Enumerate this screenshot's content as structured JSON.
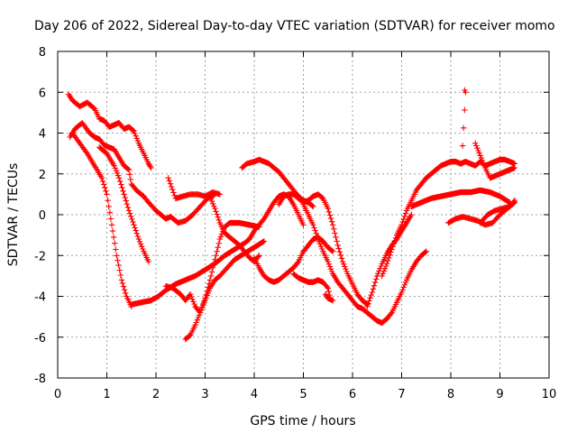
{
  "chart_data": {
    "type": "scatter",
    "title": "Day 206 of 2022, Sidereal Day-to-day VTEC variation (SDTVAR) for receiver momo",
    "xlabel": "GPS time / hours",
    "ylabel": "SDTVAR / TECUs",
    "xlim": [
      0,
      10
    ],
    "ylim": [
      -8,
      8
    ],
    "x_ticks": [
      "0",
      "1",
      "2",
      "3",
      "4",
      "5",
      "6",
      "7",
      "8",
      "9",
      "10"
    ],
    "y_ticks": [
      "8",
      "6",
      "4",
      "2",
      "0",
      "-2",
      "-4",
      "-6",
      "-8"
    ],
    "grid": true,
    "marker": "+",
    "color": "#ff0000",
    "series": [
      {
        "x": [
          0.22,
          0.3,
          0.45,
          0.6,
          0.75,
          0.85,
          0.95,
          1.05,
          1.15,
          1.25,
          1.35,
          1.45,
          1.55,
          1.65,
          1.75,
          1.85,
          1.9
        ],
        "y": [
          5.9,
          5.6,
          5.3,
          5.5,
          5.2,
          4.7,
          4.6,
          4.3,
          4.4,
          4.5,
          4.2,
          4.3,
          4.1,
          3.5,
          3.0,
          2.5,
          2.3
        ]
      },
      {
        "x": [
          0.25,
          0.35,
          0.5,
          0.65,
          0.75,
          0.85,
          0.95,
          1.05,
          1.15,
          1.25,
          1.35,
          1.45,
          1.5,
          1.6,
          1.75,
          1.85,
          2.0,
          2.1,
          2.2,
          2.3
        ],
        "y": [
          3.8,
          4.2,
          4.5,
          4.0,
          3.8,
          3.7,
          3.4,
          3.3,
          3.2,
          2.8,
          2.4,
          2.2,
          1.5,
          1.2,
          0.9,
          0.6,
          0.2,
          0.0,
          -0.2,
          -0.1
        ]
      },
      {
        "x": [
          2.3,
          2.45,
          2.6,
          2.75,
          2.9,
          3.05,
          3.2
        ],
        "y": [
          -0.1,
          -0.4,
          -0.3,
          0.0,
          0.4,
          0.8,
          1.0
        ]
      },
      {
        "x": [
          0.3,
          0.45,
          0.6,
          0.75,
          0.9,
          1.0,
          1.1,
          1.2,
          1.3,
          1.4,
          1.5
        ],
        "y": [
          4.0,
          3.5,
          3.0,
          2.4,
          1.8,
          1.0,
          -0.5,
          -2.0,
          -3.2,
          -4.0,
          -4.5
        ]
      },
      {
        "x": [
          1.5,
          1.7,
          1.9,
          2.05,
          2.2,
          2.4,
          2.6,
          2.8,
          3.0,
          3.2,
          3.4,
          3.6,
          3.8,
          3.9
        ],
        "y": [
          -4.4,
          -4.3,
          -4.2,
          -4.0,
          -3.7,
          -3.4,
          -3.2,
          -3.0,
          -2.7,
          -2.4,
          -2.0,
          -1.7,
          -1.4,
          -1.2
        ]
      },
      {
        "x": [
          0.85,
          1.0,
          1.15,
          1.25,
          1.35,
          1.45,
          1.55,
          1.65,
          1.75,
          1.85
        ],
        "y": [
          3.3,
          3.0,
          2.4,
          1.8,
          1.0,
          0.2,
          -0.5,
          -1.2,
          -1.8,
          -2.3
        ]
      },
      {
        "x": [
          2.25,
          2.4,
          2.55,
          2.7,
          2.85,
          3.0,
          3.15,
          3.3
        ],
        "y": [
          1.8,
          0.8,
          0.9,
          1.0,
          1.0,
          0.9,
          1.1,
          1.0
        ]
      },
      {
        "x": [
          2.2,
          2.35,
          2.5,
          2.6,
          2.7,
          2.8,
          2.9,
          3.0,
          3.1,
          3.2,
          3.3,
          3.45,
          3.6,
          3.8,
          4.0,
          4.2
        ],
        "y": [
          -3.5,
          -3.6,
          -3.9,
          -4.2,
          -3.9,
          -4.5,
          -4.8,
          -4.2,
          -3.6,
          -3.2,
          -3.0,
          -2.6,
          -2.2,
          -1.9,
          -1.6,
          -1.3
        ]
      },
      {
        "x": [
          2.6,
          2.7,
          2.8,
          2.9,
          3.0,
          3.1,
          3.2,
          3.3,
          3.4,
          3.5,
          3.7,
          3.9,
          4.1
        ],
        "y": [
          -6.1,
          -5.9,
          -5.4,
          -4.8,
          -4.1,
          -3.2,
          -2.2,
          -1.2,
          -0.6,
          -0.4,
          -0.4,
          -0.5,
          -0.6
        ]
      },
      {
        "x": [
          3.1,
          3.2,
          3.3,
          3.4,
          3.5,
          3.6,
          3.7,
          3.8,
          3.9,
          4.0,
          4.1
        ],
        "y": [
          0.9,
          0.3,
          -0.4,
          -0.9,
          -1.1,
          -1.3,
          -1.5,
          -1.8,
          -2.1,
          -2.3,
          -2.0
        ]
      },
      {
        "x": [
          3.9,
          4.0,
          4.1,
          4.2,
          4.3,
          4.4,
          4.5,
          4.6,
          4.7,
          4.8,
          4.9,
          5.0
        ],
        "y": [
          -1.2,
          -0.8,
          -0.5,
          -0.2,
          0.2,
          0.6,
          0.9,
          1.0,
          0.9,
          0.5,
          0.0,
          -0.5
        ]
      },
      {
        "x": [
          4.0,
          4.1,
          4.2,
          4.3,
          4.4,
          4.5,
          4.6,
          4.7,
          4.8,
          4.9,
          5.0
        ],
        "y": [
          -2.1,
          -2.6,
          -3.0,
          -3.2,
          -3.3,
          -3.2,
          -3.0,
          -2.8,
          -2.6,
          -2.3,
          -1.8
        ]
      },
      {
        "x": [
          5.0,
          5.1,
          5.2,
          5.3,
          5.4,
          5.5,
          5.6
        ],
        "y": [
          -1.8,
          -1.5,
          -1.2,
          -1.1,
          -1.3,
          -1.6,
          -1.8
        ]
      },
      {
        "x": [
          3.75,
          3.85,
          4.0,
          4.1,
          4.2,
          4.3,
          4.4,
          4.5,
          4.6,
          4.7,
          4.8,
          4.9,
          5.0,
          5.1,
          5.2
        ],
        "y": [
          2.3,
          2.5,
          2.6,
          2.7,
          2.6,
          2.5,
          2.3,
          2.1,
          1.8,
          1.5,
          1.2,
          0.9,
          0.7,
          0.6,
          0.4
        ]
      },
      {
        "x": [
          4.5,
          4.6,
          4.7,
          4.8,
          4.9,
          5.0,
          5.1,
          5.2,
          5.3,
          5.4,
          5.5,
          5.6,
          5.7,
          5.8,
          5.9,
          6.0,
          6.1,
          6.2,
          6.3
        ],
        "y": [
          0.5,
          0.9,
          1.0,
          1.0,
          0.8,
          0.6,
          0.7,
          0.9,
          1.0,
          0.8,
          0.3,
          -0.5,
          -1.5,
          -2.3,
          -2.9,
          -3.4,
          -3.9,
          -4.2,
          -4.4
        ]
      },
      {
        "x": [
          4.8,
          4.9,
          5.0,
          5.1,
          5.2,
          5.3,
          5.4,
          5.5,
          5.55
        ],
        "y": [
          -2.9,
          -3.1,
          -3.2,
          -3.3,
          -3.3,
          -3.2,
          -3.3,
          -3.6,
          -4.1
        ]
      },
      {
        "x": [
          5.0,
          5.1,
          5.2,
          5.3,
          5.4,
          5.5,
          5.6,
          5.7,
          5.8,
          5.9,
          6.0,
          6.1,
          6.2,
          6.3,
          6.4,
          6.5
        ],
        "y": [
          0.5,
          0.0,
          -0.5,
          -1.2,
          -1.8,
          -2.3,
          -2.9,
          -3.3,
          -3.6,
          -3.9,
          -4.2,
          -4.5,
          -4.6,
          -4.8,
          -5.0,
          -5.2
        ]
      },
      {
        "x": [
          6.5,
          6.6,
          6.7,
          6.8,
          6.9,
          7.0,
          7.1,
          7.2,
          7.3,
          7.4,
          7.5
        ],
        "y": [
          -5.2,
          -5.3,
          -5.1,
          -4.8,
          -4.3,
          -3.8,
          -3.2,
          -2.7,
          -2.3,
          -2.0,
          -1.8
        ]
      },
      {
        "x": [
          6.3,
          6.4,
          6.5,
          6.6,
          6.7,
          6.8,
          6.9,
          7.0,
          7.1,
          7.2
        ],
        "y": [
          -4.5,
          -3.8,
          -3.0,
          -2.4,
          -1.9,
          -1.5,
          -1.2,
          -0.8,
          -0.4,
          0.0
        ]
      },
      {
        "x": [
          6.6,
          6.7,
          6.8,
          6.9,
          7.0,
          7.1,
          7.2,
          7.3,
          7.4,
          7.5,
          7.6,
          7.7
        ],
        "y": [
          -3.0,
          -2.4,
          -1.7,
          -1.0,
          -0.5,
          0.2,
          0.7,
          1.2,
          1.5,
          1.8,
          2.0,
          2.2
        ]
      },
      {
        "x": [
          7.7,
          7.8,
          7.9,
          8.0,
          8.1,
          8.2,
          8.3,
          8.4,
          8.5,
          8.6,
          8.7,
          8.8,
          8.9,
          9.0,
          9.1,
          9.2,
          9.3
        ],
        "y": [
          2.2,
          2.4,
          2.5,
          2.6,
          2.6,
          2.5,
          2.6,
          2.5,
          2.4,
          2.6,
          2.4,
          2.5,
          2.6,
          2.7,
          2.7,
          2.6,
          2.5
        ]
      },
      {
        "x": [
          7.2,
          7.4,
          7.6,
          7.8,
          8.0,
          8.2,
          8.4,
          8.6,
          8.8,
          9.0,
          9.2
        ],
        "y": [
          0.4,
          0.6,
          0.8,
          0.9,
          1.0,
          1.1,
          1.1,
          1.2,
          1.1,
          0.9,
          0.6
        ]
      },
      {
        "x": [
          7.95,
          8.1,
          8.25,
          8.4,
          8.55,
          8.7,
          8.85,
          9.0,
          9.15,
          9.3
        ],
        "y": [
          -0.4,
          -0.2,
          -0.1,
          -0.2,
          -0.3,
          -0.5,
          -0.4,
          0.0,
          0.3,
          0.6
        ]
      },
      {
        "x": [
          8.6,
          8.75,
          8.9,
          9.05,
          9.2,
          9.3
        ],
        "y": [
          -0.4,
          0.0,
          0.2,
          0.3,
          0.4,
          0.7
        ]
      },
      {
        "x": [
          8.5,
          8.6,
          8.7,
          8.8,
          8.9,
          9.0,
          9.1,
          9.2,
          9.3
        ],
        "y": [
          3.5,
          2.9,
          2.3,
          1.8,
          1.9,
          2.0,
          2.1,
          2.2,
          2.3
        ]
      },
      {
        "x": [
          8.28,
          8.3,
          8.22
        ],
        "y": [
          6.1,
          6.0,
          2.5
        ]
      },
      {
        "x": [
          5.45,
          5.5,
          5.6
        ],
        "y": [
          -3.9,
          -4.1,
          -4.2
        ]
      }
    ]
  }
}
